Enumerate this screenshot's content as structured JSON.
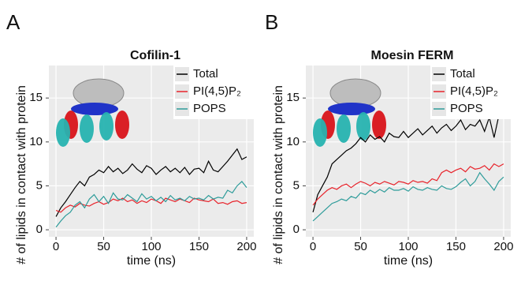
{
  "chart_data": [
    {
      "type": "line",
      "panel_label": "A",
      "title": "Cofilin-1",
      "xlabel": "time (ns)",
      "ylabel": "# of lipids in contact with protein",
      "x": [
        0,
        5,
        10,
        15,
        20,
        25,
        30,
        35,
        40,
        45,
        50,
        55,
        60,
        65,
        70,
        75,
        80,
        85,
        90,
        95,
        100,
        105,
        110,
        115,
        120,
        125,
        130,
        135,
        140,
        145,
        150,
        155,
        160,
        165,
        170,
        175,
        180,
        185,
        190,
        195,
        200
      ],
      "series": [
        {
          "name": "Total",
          "color": "#000000",
          "values": [
            1.5,
            2.5,
            3.2,
            4.0,
            4.8,
            5.5,
            5.0,
            6.0,
            6.3,
            6.8,
            6.5,
            7.2,
            6.6,
            7.0,
            6.4,
            6.8,
            7.5,
            6.9,
            6.5,
            7.3,
            7.0,
            6.3,
            6.8,
            7.2,
            6.6,
            7.0,
            6.5,
            7.1,
            6.3,
            6.9,
            7.0,
            6.5,
            7.8,
            6.8,
            6.6,
            7.2,
            7.8,
            8.5,
            9.2,
            8.0,
            8.3
          ]
        },
        {
          "name": "PI(4,5)P₂",
          "color": "#e8232b",
          "values": [
            2.2,
            2.0,
            2.5,
            2.8,
            2.6,
            3.0,
            2.8,
            2.7,
            3.0,
            3.2,
            2.9,
            3.1,
            3.5,
            3.3,
            3.6,
            3.2,
            3.4,
            3.0,
            3.3,
            3.1,
            3.5,
            3.3,
            3.0,
            3.6,
            3.4,
            3.2,
            3.5,
            3.3,
            3.1,
            3.6,
            3.4,
            3.3,
            3.2,
            3.5,
            3.0,
            3.1,
            2.9,
            3.2,
            3.3,
            3.0,
            3.1
          ]
        },
        {
          "name": "POPS",
          "color": "#2e9c9a",
          "values": [
            0.3,
            1.0,
            1.6,
            2.0,
            2.8,
            3.2,
            2.5,
            3.5,
            4.0,
            3.2,
            3.8,
            3.0,
            4.2,
            3.5,
            3.4,
            4.0,
            3.6,
            3.2,
            4.1,
            3.5,
            3.8,
            3.3,
            3.7,
            3.2,
            3.9,
            3.4,
            3.6,
            3.3,
            3.8,
            3.5,
            3.6,
            3.4,
            3.9,
            3.5,
            3.7,
            3.6,
            4.5,
            4.2,
            5.0,
            5.5,
            4.8
          ]
        }
      ],
      "xlim": [
        -7.5,
        207.5
      ],
      "xticks": [
        0,
        50,
        100,
        150,
        200
      ],
      "ylim": [
        -0.8,
        18.7
      ],
      "yticks": [
        0,
        5,
        10,
        15
      ],
      "grid": true,
      "legend": "top-right"
    },
    {
      "type": "line",
      "panel_label": "B",
      "title": "Moesin FERM",
      "xlabel": "time (ns)",
      "ylabel": "# of lipids in contact with protein",
      "x": [
        0,
        5,
        10,
        15,
        20,
        25,
        30,
        35,
        40,
        45,
        50,
        55,
        60,
        65,
        70,
        75,
        80,
        85,
        90,
        95,
        100,
        105,
        110,
        115,
        120,
        125,
        130,
        135,
        140,
        145,
        150,
        155,
        160,
        165,
        170,
        175,
        180,
        185,
        190,
        195,
        200
      ],
      "series": [
        {
          "name": "Total",
          "color": "#000000",
          "values": [
            2.0,
            4.0,
            5.0,
            6.0,
            7.5,
            8.0,
            8.5,
            9.0,
            9.3,
            9.8,
            10.5,
            10.0,
            10.8,
            10.3,
            10.6,
            10.0,
            11.0,
            10.6,
            10.5,
            11.2,
            10.5,
            11.0,
            11.5,
            10.8,
            11.3,
            11.8,
            11.0,
            11.6,
            12.0,
            11.3,
            11.8,
            12.5,
            11.4,
            12.0,
            11.8,
            12.5,
            11.2,
            12.8,
            10.5,
            13.0,
            14.0
          ]
        },
        {
          "name": "PI(4,5)P₂",
          "color": "#e8232b",
          "values": [
            2.8,
            3.5,
            4.0,
            4.5,
            4.8,
            4.6,
            5.0,
            5.2,
            4.8,
            5.2,
            5.5,
            5.3,
            5.0,
            5.4,
            5.2,
            5.5,
            5.3,
            5.1,
            5.5,
            5.4,
            5.2,
            5.6,
            5.4,
            5.5,
            5.3,
            5.8,
            5.6,
            6.5,
            6.8,
            6.5,
            6.8,
            7.0,
            6.6,
            7.2,
            6.9,
            7.0,
            7.3,
            6.8,
            7.5,
            7.2,
            7.5
          ]
        },
        {
          "name": "POPS",
          "color": "#2e9c9a",
          "values": [
            1.0,
            1.5,
            2.0,
            2.5,
            3.0,
            3.2,
            3.5,
            3.3,
            3.8,
            3.6,
            4.2,
            4.0,
            4.5,
            4.2,
            4.6,
            4.3,
            4.8,
            4.5,
            4.5,
            4.7,
            4.4,
            4.9,
            4.6,
            4.5,
            4.8,
            4.6,
            4.5,
            5.0,
            4.7,
            4.6,
            4.9,
            5.4,
            5.8,
            5.0,
            5.5,
            6.5,
            5.8,
            5.2,
            4.5,
            5.5,
            6.0
          ]
        }
      ],
      "xlim": [
        -7.5,
        207.5
      ],
      "xticks": [
        0,
        50,
        100,
        150,
        200
      ],
      "ylim": [
        -0.8,
        18.7
      ],
      "yticks": [
        0,
        5,
        10,
        15
      ],
      "grid": true,
      "legend": "top-right"
    }
  ]
}
